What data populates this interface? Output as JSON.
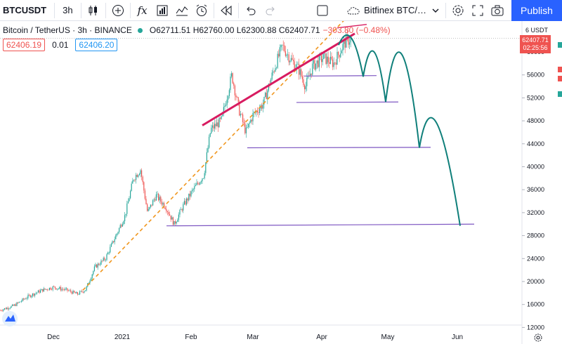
{
  "toolbar": {
    "symbol": "BTCUSDT",
    "interval": "3h",
    "source": "Bitfinex BTC/…",
    "publish": "Publish"
  },
  "legend": {
    "title": "Bitcoin / TetherUS · 3h · BINANCE",
    "open_label": "O",
    "open": "62711.51",
    "high_label": "H",
    "high": "62760.00",
    "low_label": "L",
    "low": "62300.88",
    "close_label": "C",
    "close": "62407.71",
    "change": "−303.80 (−0.48%)"
  },
  "values_row": {
    "bid": "62406.19",
    "spread": "0.01",
    "ask": "62406.20"
  },
  "price_axis": {
    "unit": "USDT",
    "current_price": "62407.71",
    "countdown": "02:25:56",
    "ticks": [
      "60000",
      "56000",
      "52000",
      "48000",
      "44000",
      "40000",
      "36000",
      "32000",
      "28000",
      "24000",
      "20000",
      "16000",
      "12000"
    ]
  },
  "time_axis": {
    "ticks": [
      "Dec",
      "2021",
      "Feb",
      "Mar",
      "Apr",
      "May",
      "Jun"
    ]
  },
  "colors": {
    "up": "#26a69a",
    "down": "#ef5350",
    "trendline": "#d81b60",
    "dashed": "#f0961e",
    "projection": "#0f7f7a",
    "support": "#7e57c2",
    "accent": "#2962ff"
  }
}
